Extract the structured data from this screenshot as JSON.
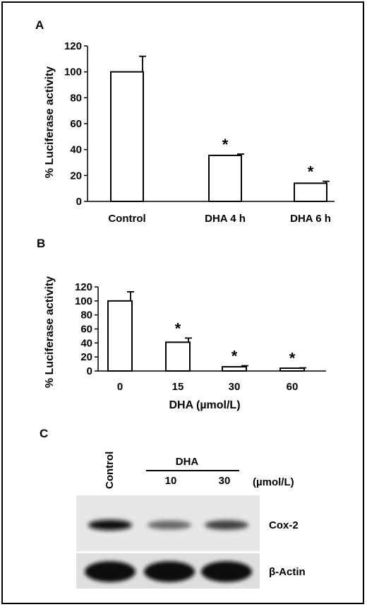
{
  "panels": {
    "a": {
      "letter": "A"
    },
    "b": {
      "letter": "B"
    },
    "c": {
      "letter": "C"
    }
  },
  "chart_data": [
    {
      "panel": "A",
      "type": "bar",
      "ylabel": "% Luciferase activity",
      "xlabel": "",
      "categories": [
        "Control",
        "DHA 4 h",
        "DHA 6 h"
      ],
      "values": [
        100,
        35.5,
        14
      ],
      "errors": [
        12,
        1,
        1.5
      ],
      "significant": [
        false,
        true,
        true
      ],
      "ylim": [
        0,
        120
      ],
      "yticks": [
        0,
        20,
        40,
        60,
        80,
        100,
        120
      ],
      "annotation": "*"
    },
    {
      "panel": "B",
      "type": "bar",
      "ylabel": "% Luciferase activity",
      "xlabel": "DHA (µmol/L)",
      "categories": [
        "0",
        "15",
        "30",
        "60"
      ],
      "values": [
        100,
        41,
        6,
        4
      ],
      "errors": [
        13,
        6,
        1.5,
        0.5
      ],
      "significant": [
        false,
        true,
        true,
        true
      ],
      "ylim": [
        0,
        120
      ],
      "yticks": [
        0,
        20,
        40,
        60,
        80,
        100,
        120
      ],
      "annotation": "*"
    }
  ],
  "western_blot": {
    "control_label": "Control",
    "group_label": "DHA",
    "concentrations": [
      "10",
      "30"
    ],
    "unit": "(µmol/L)",
    "rows": [
      {
        "name": "Cox-2",
        "band_intensity": [
          0.95,
          0.6,
          0.75
        ]
      },
      {
        "name": "β-Actin",
        "band_intensity": [
          0.95,
          0.95,
          0.95
        ]
      }
    ]
  }
}
